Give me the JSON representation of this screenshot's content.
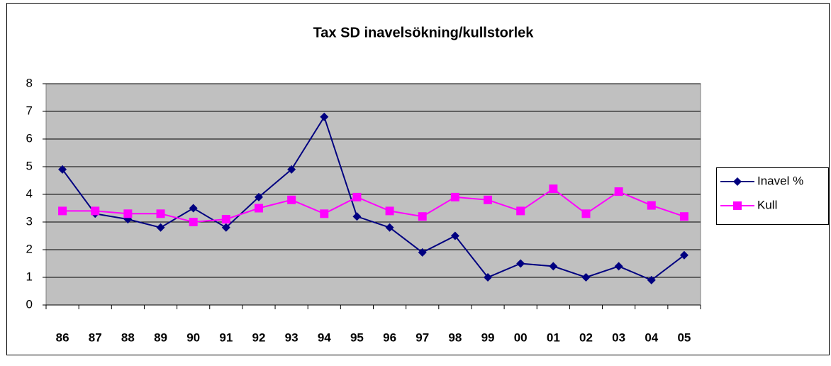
{
  "chart_data": {
    "type": "line",
    "title": "Tax SD inavelsökning/kullstorlek",
    "categories": [
      "86",
      "87",
      "88",
      "89",
      "90",
      "91",
      "92",
      "93",
      "94",
      "95",
      "96",
      "97",
      "98",
      "99",
      "00",
      "01",
      "02",
      "03",
      "04",
      "05"
    ],
    "series": [
      {
        "name": "Inavel %",
        "color": "#000080",
        "marker": "diamond",
        "values": [
          4.9,
          3.3,
          3.1,
          2.8,
          3.5,
          2.8,
          3.9,
          4.9,
          6.8,
          3.2,
          2.8,
          1.9,
          2.5,
          1.0,
          1.5,
          1.4,
          1.0,
          1.4,
          0.9,
          1.8
        ]
      },
      {
        "name": "Kull",
        "color": "#ff00ff",
        "marker": "square",
        "values": [
          3.4,
          3.4,
          3.3,
          3.3,
          3.0,
          3.1,
          3.5,
          3.8,
          3.3,
          3.9,
          3.4,
          3.2,
          3.9,
          3.8,
          3.4,
          4.2,
          3.3,
          4.1,
          3.6,
          3.2
        ]
      }
    ],
    "ylim": [
      0,
      8
    ],
    "yticks": [
      0,
      1,
      2,
      3,
      4,
      5,
      6,
      7,
      8
    ],
    "grid": true,
    "legend": "right"
  }
}
